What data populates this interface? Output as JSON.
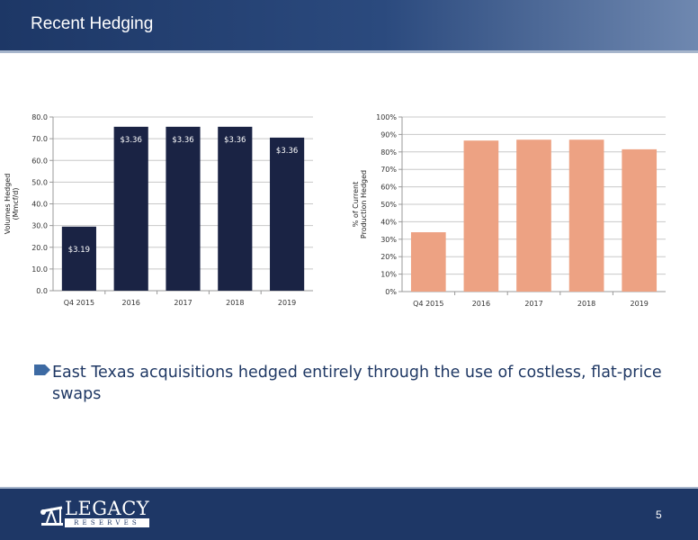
{
  "header": {
    "title": "Recent Hedging"
  },
  "chart_data": [
    {
      "type": "bar",
      "categories": [
        "Q4 2015",
        "2016",
        "2017",
        "2018",
        "2019"
      ],
      "values": [
        29.5,
        75.5,
        75.5,
        75.5,
        70.5
      ],
      "data_labels": [
        "$3.19",
        "$3.36",
        "$3.36",
        "$3.36",
        "$3.36"
      ],
      "ylabel": "Volumes Hedged\n(Mmcf/d)",
      "ylim": [
        0,
        80
      ],
      "yticks": [
        "0.0",
        "10.0",
        "20.0",
        "30.0",
        "40.0",
        "50.0",
        "60.0",
        "70.0",
        "80.0"
      ],
      "grid": true,
      "color": "#1a2344"
    },
    {
      "type": "bar",
      "categories": [
        "Q4 2015",
        "2016",
        "2017",
        "2018",
        "2019"
      ],
      "values": [
        34,
        86.5,
        87,
        87,
        81.5
      ],
      "ylabel": "% of Current\nProduction Hedged",
      "ylim": [
        0,
        100
      ],
      "yticks": [
        "0%",
        "10%",
        "20%",
        "30%",
        "40%",
        "50%",
        "60%",
        "70%",
        "80%",
        "90%",
        "100%"
      ],
      "grid": true,
      "color": "#eda283"
    }
  ],
  "bullet": {
    "text": "East  Texas acquisitions hedged entirely through the use of costless, flat-price swaps"
  },
  "footer": {
    "logo_word": "LEGACY",
    "logo_sub": "RESERVES",
    "page_number": "5"
  },
  "colors": {
    "header": "#1d3766",
    "footer": "#1e3766",
    "accent": "#3d6aa3",
    "bullet_text": "#1f3864"
  },
  "icons": {
    "bullet": "arrow-tag-icon",
    "logo": "oil-pump-icon"
  }
}
